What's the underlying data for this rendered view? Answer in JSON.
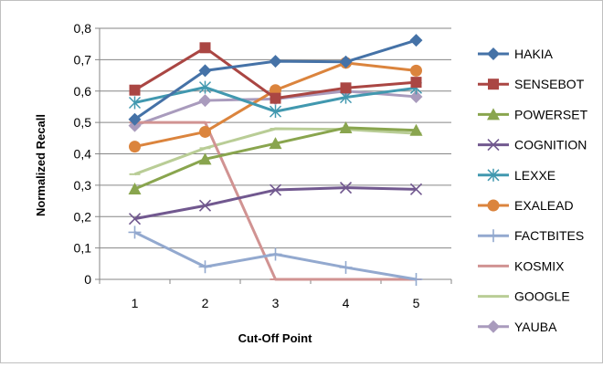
{
  "chart_data": {
    "type": "line",
    "title": "",
    "xlabel": "Cut-Off Point",
    "ylabel": "Normalized Recall",
    "categories": [
      "1",
      "2",
      "3",
      "4",
      "5"
    ],
    "ylim": [
      0,
      0.8
    ],
    "yticks": [
      "0",
      "0,1",
      "0,2",
      "0,3",
      "0,4",
      "0,5",
      "0,6",
      "0,7",
      "0,8"
    ],
    "grid": "horizontal",
    "legend": "right",
    "series": [
      {
        "name": "HAKIA",
        "color": "#4572a7",
        "marker": "diamond",
        "values": [
          0.51,
          0.665,
          0.695,
          0.693,
          0.762
        ]
      },
      {
        "name": "SENSEBOT",
        "color": "#aa4643",
        "marker": "square",
        "values": [
          0.603,
          0.738,
          0.577,
          0.61,
          0.628
        ]
      },
      {
        "name": "POWERSET",
        "color": "#89a54e",
        "marker": "triangle",
        "values": [
          0.288,
          0.383,
          0.433,
          0.483,
          0.475
        ]
      },
      {
        "name": "COGNITION",
        "color": "#71588f",
        "marker": "x",
        "values": [
          0.193,
          0.235,
          0.285,
          0.292,
          0.287
        ]
      },
      {
        "name": "LEXXE",
        "color": "#4198af",
        "marker": "star",
        "values": [
          0.563,
          0.612,
          0.535,
          0.58,
          0.61
        ]
      },
      {
        "name": "EXALEAD",
        "color": "#db843d",
        "marker": "circle",
        "values": [
          0.423,
          0.47,
          0.603,
          0.69,
          0.665
        ]
      },
      {
        "name": "FACTBITES",
        "color": "#93a9cf",
        "marker": "plus",
        "values": [
          0.15,
          0.04,
          0.08,
          0.038,
          0.0
        ]
      },
      {
        "name": "KOSMIX",
        "color": "#d19392",
        "marker": "dash",
        "values": [
          0.5,
          0.5,
          0.0,
          0.0,
          0.0
        ]
      },
      {
        "name": "GOOGLE",
        "color": "#b9cd96",
        "marker": "dash",
        "values": [
          0.335,
          0.418,
          0.48,
          0.478,
          0.465
        ]
      },
      {
        "name": "YAUBA",
        "color": "#a99bbd",
        "marker": "diamond",
        "values": [
          0.49,
          0.57,
          0.575,
          0.6,
          0.582
        ]
      }
    ]
  }
}
